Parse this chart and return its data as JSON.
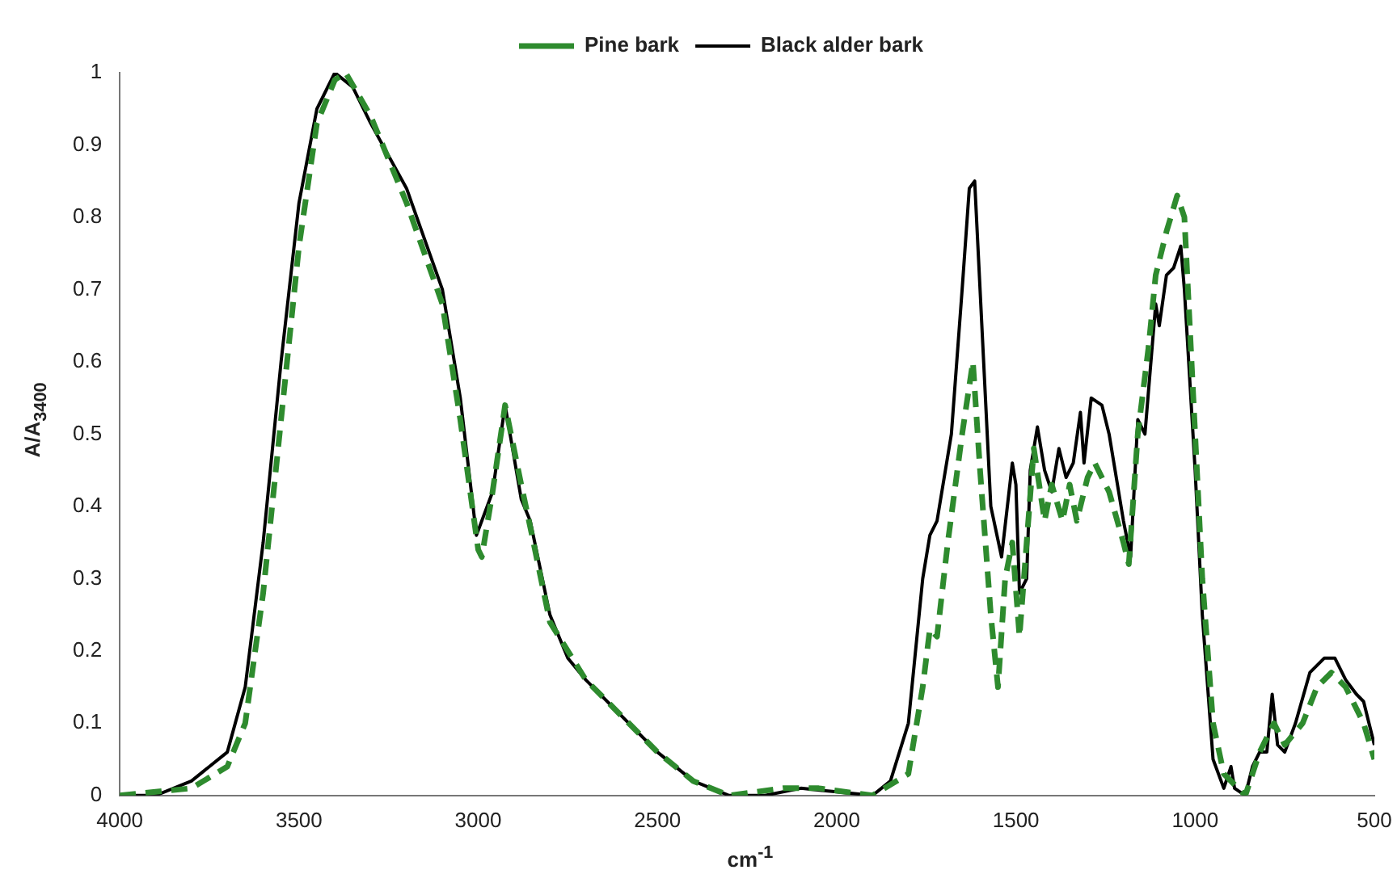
{
  "chart_data": {
    "type": "line",
    "xlabel": "cm$^{-1}$",
    "ylabel": "A/A$_{3400}$",
    "xlim": [
      4000,
      500
    ],
    "xticks": [
      4000,
      3500,
      3000,
      2500,
      2000,
      1500,
      1000,
      500
    ],
    "ylim": [
      0,
      1
    ],
    "yticks": [
      0,
      0.1,
      0.2,
      0.3,
      0.4,
      0.5,
      0.6,
      0.7,
      0.8,
      0.9,
      1
    ],
    "grid": false,
    "legend": "top",
    "marker": "none",
    "series": [
      {
        "name": "Pine bark",
        "color": "#2e8b2e",
        "line_style": "dashed",
        "x": [
          4000,
          3800,
          3700,
          3650,
          3600,
          3550,
          3500,
          3450,
          3400,
          3370,
          3300,
          3200,
          3100,
          3050,
          3000,
          2990,
          2960,
          2925,
          2880,
          2850,
          2800,
          2700,
          2500,
          2400,
          2300,
          2150,
          2050,
          1900,
          1800,
          1760,
          1740,
          1720,
          1690,
          1650,
          1620,
          1600,
          1570,
          1550,
          1530,
          1510,
          1490,
          1470,
          1450,
          1420,
          1400,
          1370,
          1350,
          1330,
          1300,
          1280,
          1240,
          1200,
          1185,
          1160,
          1130,
          1110,
          1080,
          1050,
          1030,
          1000,
          980,
          950,
          920,
          880,
          860,
          820,
          780,
          750,
          700,
          660,
          620,
          580,
          550,
          530,
          500
        ],
        "values": [
          0,
          0.01,
          0.04,
          0.1,
          0.28,
          0.52,
          0.76,
          0.93,
          0.99,
          1,
          0.94,
          0.82,
          0.68,
          0.52,
          0.34,
          0.33,
          0.42,
          0.54,
          0.43,
          0.36,
          0.24,
          0.16,
          0.06,
          0.02,
          0,
          0.01,
          0.01,
          0,
          0.03,
          0.15,
          0.23,
          0.22,
          0.35,
          0.5,
          0.6,
          0.45,
          0.25,
          0.15,
          0.3,
          0.35,
          0.22,
          0.35,
          0.48,
          0.38,
          0.43,
          0.38,
          0.43,
          0.38,
          0.44,
          0.46,
          0.42,
          0.35,
          0.32,
          0.5,
          0.62,
          0.72,
          0.78,
          0.83,
          0.8,
          0.5,
          0.3,
          0.1,
          0.03,
          0.01,
          0,
          0.06,
          0.1,
          0.07,
          0.1,
          0.15,
          0.17,
          0.15,
          0.12,
          0.1,
          0.05
        ]
      },
      {
        "name": "Black alder bark",
        "color": "#000000",
        "line_style": "solid",
        "x": [
          4000,
          3900,
          3800,
          3700,
          3650,
          3600,
          3550,
          3500,
          3450,
          3400,
          3350,
          3300,
          3200,
          3100,
          3050,
          3005,
          2960,
          2925,
          2880,
          2855,
          2800,
          2750,
          2700,
          2600,
          2500,
          2400,
          2300,
          2200,
          2100,
          2000,
          1900,
          1850,
          1800,
          1760,
          1740,
          1720,
          1680,
          1650,
          1630,
          1615,
          1600,
          1570,
          1540,
          1510,
          1500,
          1490,
          1470,
          1460,
          1440,
          1420,
          1400,
          1380,
          1360,
          1340,
          1320,
          1310,
          1290,
          1260,
          1240,
          1200,
          1180,
          1160,
          1140,
          1110,
          1100,
          1080,
          1060,
          1040,
          1030,
          1000,
          980,
          950,
          920,
          900,
          890,
          860,
          840,
          820,
          800,
          785,
          770,
          750,
          720,
          680,
          640,
          610,
          580,
          550,
          530,
          500
        ],
        "values": [
          0,
          0,
          0.02,
          0.06,
          0.15,
          0.35,
          0.6,
          0.82,
          0.95,
          1,
          0.98,
          0.93,
          0.84,
          0.7,
          0.55,
          0.36,
          0.42,
          0.54,
          0.41,
          0.38,
          0.25,
          0.19,
          0.16,
          0.11,
          0.06,
          0.02,
          0,
          0,
          0.01,
          0.005,
          0,
          0.02,
          0.1,
          0.3,
          0.36,
          0.38,
          0.5,
          0.7,
          0.84,
          0.85,
          0.7,
          0.4,
          0.33,
          0.46,
          0.43,
          0.28,
          0.3,
          0.45,
          0.51,
          0.45,
          0.42,
          0.48,
          0.44,
          0.46,
          0.53,
          0.46,
          0.55,
          0.54,
          0.5,
          0.38,
          0.33,
          0.52,
          0.5,
          0.68,
          0.65,
          0.72,
          0.73,
          0.76,
          0.7,
          0.45,
          0.25,
          0.05,
          0.01,
          0.04,
          0.01,
          0,
          0.04,
          0.06,
          0.06,
          0.14,
          0.07,
          0.06,
          0.1,
          0.17,
          0.19,
          0.19,
          0.16,
          0.14,
          0.13,
          0.07
        ]
      }
    ]
  }
}
